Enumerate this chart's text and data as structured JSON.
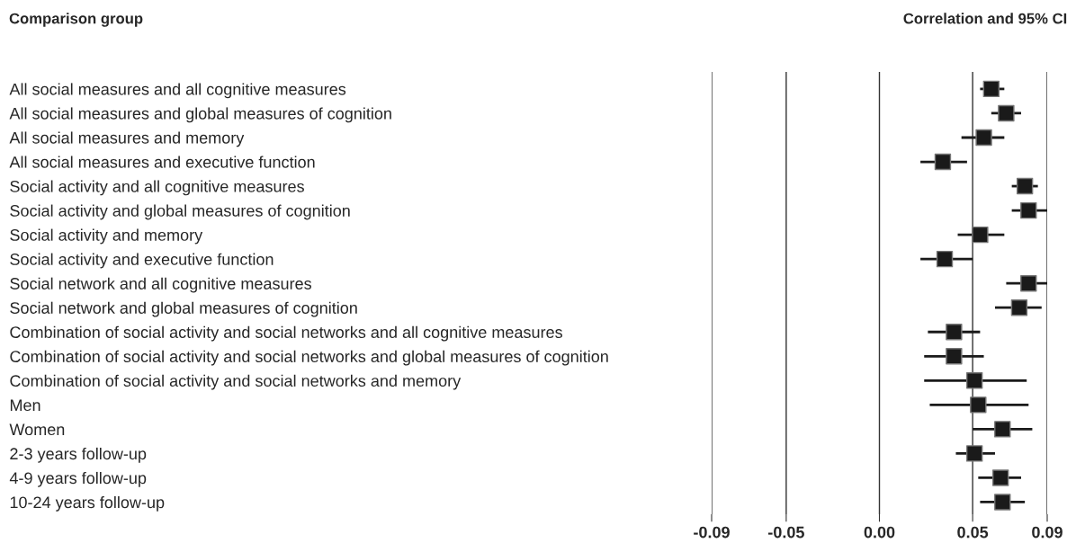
{
  "chart_data": {
    "type": "scatter",
    "orientation": "horizontal",
    "title": "Correlation and 95% CI",
    "ylabel": "Comparison group",
    "categories": [
      "All social measures and all cognitive measures",
      "All social measures and global measures of cognition",
      "All social measures and memory",
      "All social measures and executive function",
      "Social activity and all cognitive measures",
      "Social activity and global measures of cognition",
      "Social activity and memory",
      "Social activity and executive function",
      "Social network and all cognitive measures",
      "Social network and global measures of cognition",
      "Combination of social activity and social networks and all cognitive measures",
      "Combination of social activity and social networks and global measures of cognition",
      "Combination of social activity and social networks and memory",
      "Men",
      "Women",
      "2-3 years follow-up",
      "4-9 years follow-up",
      "10-24 years follow-up"
    ],
    "values": [
      0.06,
      0.068,
      0.056,
      0.034,
      0.078,
      0.08,
      0.054,
      0.035,
      0.08,
      0.075,
      0.04,
      0.04,
      0.051,
      0.053,
      0.066,
      0.051,
      0.065,
      0.066
    ],
    "errors": [
      [
        0.054,
        0.067
      ],
      [
        0.06,
        0.076
      ],
      [
        0.044,
        0.067
      ],
      [
        0.022,
        0.047
      ],
      [
        0.071,
        0.085
      ],
      [
        0.071,
        0.09
      ],
      [
        0.042,
        0.067
      ],
      [
        0.022,
        0.05
      ],
      [
        0.068,
        0.09
      ],
      [
        0.062,
        0.087
      ],
      [
        0.026,
        0.054
      ],
      [
        0.024,
        0.056
      ],
      [
        0.024,
        0.079
      ],
      [
        0.027,
        0.08
      ],
      [
        0.05,
        0.082
      ],
      [
        0.041,
        0.062
      ],
      [
        0.053,
        0.076
      ],
      [
        0.054,
        0.078
      ]
    ],
    "color": "#1a1a1a",
    "marker": "square",
    "grid": "x",
    "xlim": [
      -0.09,
      0.09
    ],
    "xticks": [
      -0.09,
      {
        "value": -0.05,
        "label": "-0.05"
      },
      {
        "value": 0,
        "label": "0.00"
      },
      {
        "value": 0.05,
        "label": "0.05"
      },
      0.09
    ]
  }
}
